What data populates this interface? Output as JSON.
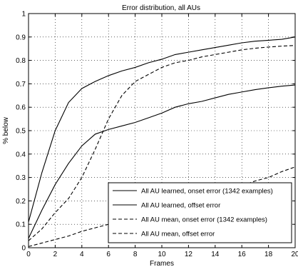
{
  "chart_data": {
    "type": "line",
    "title": "Error distribution, all AUs",
    "xlabel": "Frames",
    "ylabel": "% below",
    "xlim": [
      0,
      20
    ],
    "ylim": [
      0,
      1
    ],
    "xticks": [
      "0",
      "2",
      "4",
      "6",
      "8",
      "10",
      "12",
      "14",
      "16",
      "18",
      "20"
    ],
    "yticks": [
      "0",
      "0.1",
      "0.2",
      "0.3",
      "0.4",
      "0.5",
      "0.6",
      "0.7",
      "0.8",
      "0.9",
      "1"
    ],
    "grid": true,
    "legend_position": "bottom-right",
    "x": [
      0,
      1,
      2,
      3,
      4,
      5,
      6,
      7,
      8,
      9,
      10,
      11,
      12,
      13,
      14,
      15,
      16,
      17,
      18,
      19,
      20
    ],
    "series": [
      {
        "name": "All AU learned, onset error (1342 examples)",
        "style": "solid",
        "values": [
          0.11,
          0.32,
          0.5,
          0.62,
          0.68,
          0.71,
          0.735,
          0.755,
          0.77,
          0.79,
          0.805,
          0.825,
          0.835,
          0.845,
          0.855,
          0.865,
          0.875,
          0.882,
          0.886,
          0.89,
          0.9
        ]
      },
      {
        "name": "All AU learned, offset error",
        "style": "solid",
        "values": [
          0.04,
          0.16,
          0.27,
          0.36,
          0.435,
          0.485,
          0.505,
          0.52,
          0.535,
          0.555,
          0.575,
          0.6,
          0.615,
          0.625,
          0.64,
          0.655,
          0.665,
          0.675,
          0.683,
          0.69,
          0.695
        ]
      },
      {
        "name": "All AU mean, onset error (1342 examples)",
        "style": "dashed",
        "values": [
          0.03,
          0.08,
          0.15,
          0.21,
          0.3,
          0.42,
          0.55,
          0.65,
          0.71,
          0.74,
          0.77,
          0.79,
          0.8,
          0.815,
          0.825,
          0.835,
          0.845,
          0.852,
          0.857,
          0.861,
          0.864
        ]
      },
      {
        "name": "All AU mean, offset error",
        "style": "dashed",
        "values": [
          0.005,
          0.02,
          0.035,
          0.05,
          0.07,
          0.085,
          0.1,
          0.115,
          0.13,
          0.145,
          0.16,
          0.175,
          0.19,
          0.205,
          0.225,
          0.245,
          0.265,
          0.285,
          0.3,
          0.325,
          0.345
        ]
      }
    ]
  }
}
